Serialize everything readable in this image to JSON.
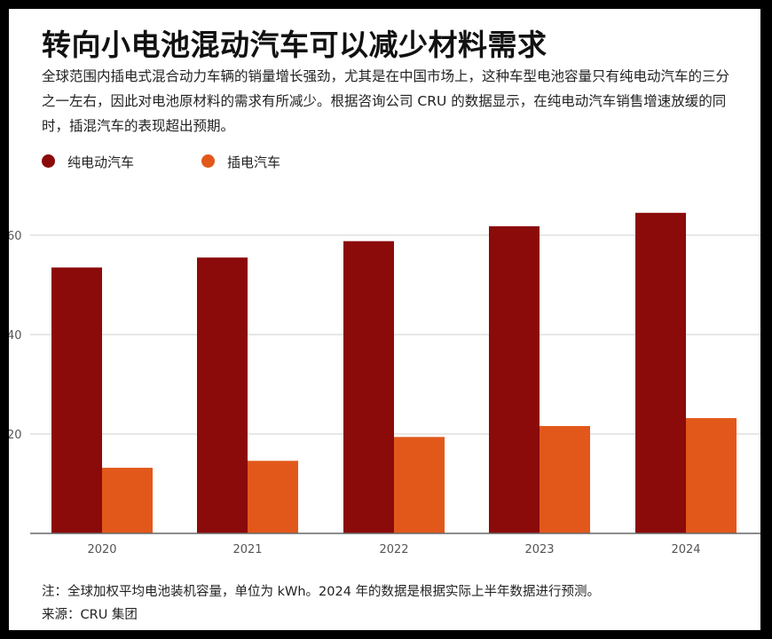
{
  "header": {
    "title": "转向小电池混动汽车可以减少材料需求",
    "subtitle": "全球范围内插电式混合动力车辆的销量增长强劲，尤其是在中国市场上，这种车型电池容量只有纯电动汽车的三分之一左右，因此对电池原材料的需求有所减少。根据咨询公司 CRU 的数据显示，在纯电动汽车销售增速放缓的同时，插混汽车的表现超出预期。"
  },
  "footer": {
    "note": "注：全球加权平均电池装机容量，单位为 kWh。2024 年的数据是根据实际上半年数据进行预测。",
    "source": "来源：CRU 集团"
  },
  "colors": {
    "bev": "#8b0a0a",
    "phev": "#e2581b",
    "grid": "#cfcfcf",
    "axis": "#666666",
    "tick_text": "#555555"
  },
  "chart_data": {
    "type": "bar",
    "title": "转向小电池混动汽车可以减少材料需求",
    "categories": [
      "2020",
      "2021",
      "2022",
      "2023",
      "2024"
    ],
    "series": [
      {
        "name": "纯电动汽车",
        "values": [
          53.5,
          55.5,
          58.8,
          61.8,
          64.5
        ]
      },
      {
        "name": "插电汽车",
        "values": [
          13.2,
          14.6,
          19.4,
          21.6,
          23.2
        ]
      }
    ],
    "yticks": [
      "20",
      "40",
      "60"
    ],
    "ylim": [
      0,
      66
    ],
    "grid": true,
    "legend_position": "top-left"
  }
}
